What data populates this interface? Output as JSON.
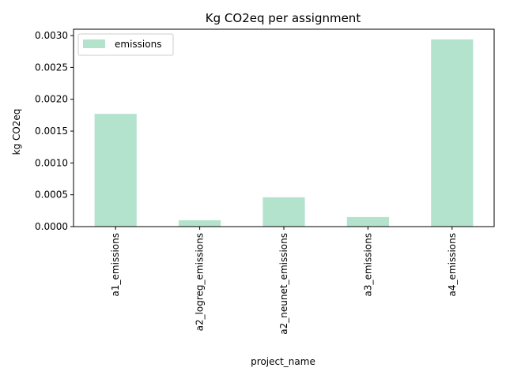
{
  "chart_data": {
    "type": "bar",
    "title": "Kg CO2eq per assignment",
    "xlabel": "project_name",
    "ylabel": "kg CO2eq",
    "categories": [
      "a1_emissions",
      "a2_logreg_emissions",
      "a2_neunet_emissions",
      "a3_emissions",
      "a4_emissions"
    ],
    "series": [
      {
        "name": "emissions",
        "values": [
          0.00177,
          0.0001,
          0.00046,
          0.00015,
          0.00294
        ],
        "color": "#b3e2cd"
      }
    ],
    "ylim": [
      0,
      0.0031
    ],
    "yticks": [
      "0.0000",
      "0.0005",
      "0.0010",
      "0.0015",
      "0.0020",
      "0.0025",
      "0.0030"
    ],
    "grid": false,
    "legend_position": "top-left"
  }
}
